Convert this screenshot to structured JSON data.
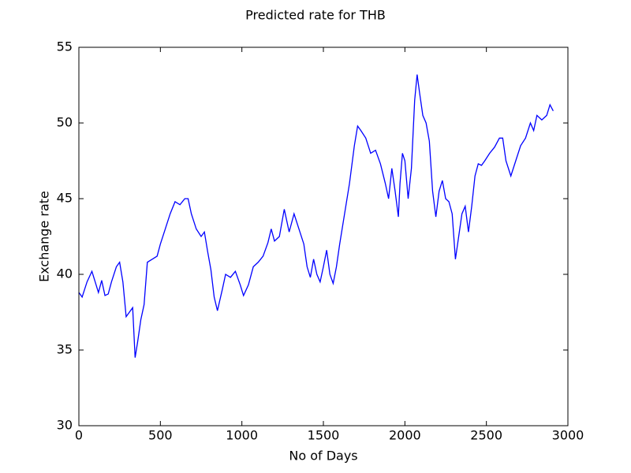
{
  "chart_data": {
    "type": "line",
    "title": "Predicted rate for THB",
    "x_label": "No of Days",
    "y_label": "Exchange rate",
    "x": [
      0,
      20,
      50,
      80,
      100,
      120,
      140,
      160,
      180,
      200,
      230,
      250,
      270,
      290,
      310,
      330,
      345,
      360,
      380,
      400,
      420,
      450,
      480,
      500,
      530,
      560,
      590,
      620,
      650,
      670,
      690,
      720,
      750,
      770,
      790,
      810,
      830,
      850,
      880,
      900,
      930,
      960,
      990,
      1010,
      1040,
      1070,
      1100,
      1130,
      1160,
      1180,
      1200,
      1230,
      1260,
      1290,
      1320,
      1350,
      1380,
      1400,
      1420,
      1440,
      1460,
      1480,
      1500,
      1520,
      1540,
      1560,
      1580,
      1600,
      1630,
      1660,
      1690,
      1710,
      1730,
      1760,
      1790,
      1820,
      1850,
      1880,
      1900,
      1920,
      1940,
      1960,
      1970,
      1985,
      2000,
      2020,
      2040,
      2060,
      2075,
      2090,
      2110,
      2130,
      2150,
      2170,
      2190,
      2210,
      2230,
      2250,
      2270,
      2290,
      2310,
      2330,
      2350,
      2370,
      2390,
      2410,
      2430,
      2450,
      2470,
      2490,
      2520,
      2550,
      2580,
      2600,
      2620,
      2650,
      2680,
      2710,
      2740,
      2770,
      2790,
      2810,
      2840,
      2870,
      2890,
      2910
    ],
    "series": [
      {
        "name": "THB",
        "color": "#0000ff",
        "values": [
          38.8,
          38.5,
          39.5,
          40.2,
          39.5,
          38.8,
          39.6,
          38.6,
          38.7,
          39.5,
          40.5,
          40.8,
          39.5,
          37.2,
          37.5,
          37.8,
          34.5,
          35.5,
          37,
          38,
          40.8,
          41,
          41.2,
          42,
          43,
          44,
          44.8,
          44.6,
          45,
          45,
          44,
          43,
          42.5,
          42.8,
          41.5,
          40.3,
          38.5,
          37.6,
          39,
          40,
          39.8,
          40.2,
          39.3,
          38.6,
          39.3,
          40.5,
          40.8,
          41.2,
          42.1,
          43,
          42.2,
          42.5,
          44.3,
          42.8,
          44,
          43,
          42,
          40.5,
          39.8,
          41,
          40,
          39.5,
          40.5,
          41.6,
          40,
          39.4,
          40.5,
          42,
          44,
          46,
          48.5,
          49.8,
          49.5,
          49,
          48,
          48.2,
          47.3,
          46,
          45,
          47,
          45.5,
          43.8,
          46,
          48,
          47.5,
          45,
          47,
          51.5,
          53.2,
          52,
          50.5,
          50,
          48.8,
          45.5,
          43.8,
          45.5,
          46.2,
          45,
          44.8,
          44,
          41,
          42.5,
          44,
          44.5,
          42.8,
          44.5,
          46.5,
          47.3,
          47.2,
          47.5,
          48,
          48.4,
          49,
          49,
          47.5,
          46.5,
          47.5,
          48.5,
          49,
          50,
          49.5,
          50.5,
          50.2,
          50.5,
          51.2,
          50.8
        ]
      }
    ],
    "xlim": [
      0,
      3000
    ],
    "xticks": [
      0,
      500,
      1000,
      1500,
      2000,
      2500,
      3000
    ],
    "ylim": [
      30,
      55
    ],
    "yticks": [
      30,
      35,
      40,
      45,
      50,
      55
    ],
    "grid": false
  }
}
